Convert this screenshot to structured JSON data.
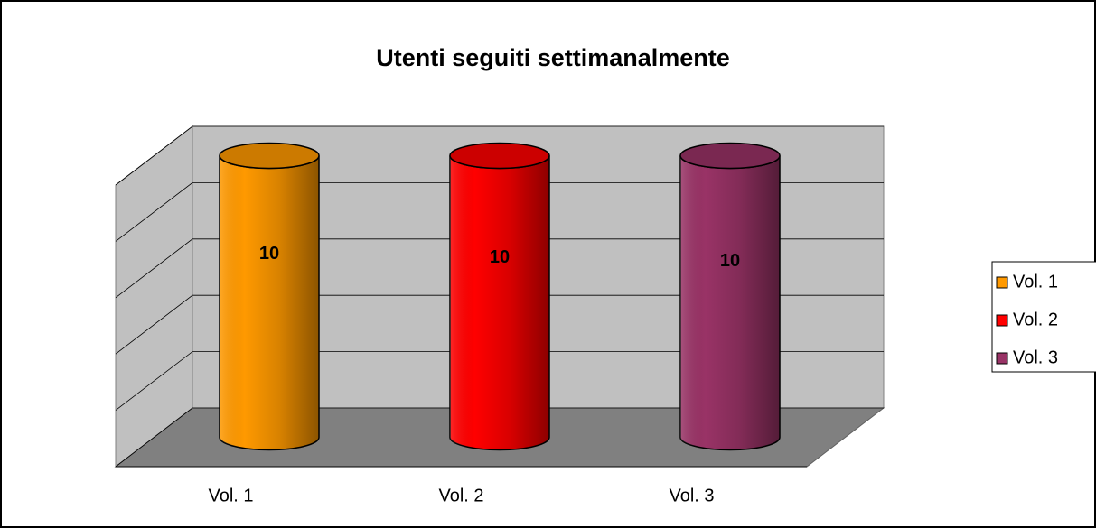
{
  "chart_data": {
    "type": "cylinder",
    "title": "Utenti seguiti settimanalmente",
    "categories": [
      "Vol. 1",
      "Vol. 2",
      "Vol. 3"
    ],
    "values": [
      10,
      10,
      10
    ],
    "colors": [
      "#ff9900",
      "#ff0000",
      "#993366"
    ],
    "ylim": [
      0,
      10
    ],
    "yticks": [
      0,
      2,
      4,
      6,
      8,
      10
    ],
    "grid": true,
    "legend": "right"
  }
}
